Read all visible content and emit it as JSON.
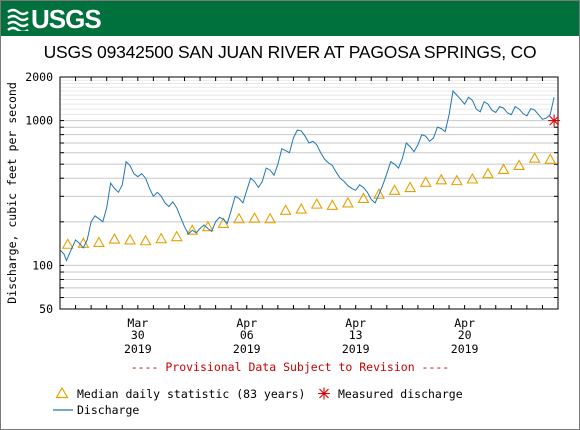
{
  "header": {
    "logo_text": "USGS",
    "logo_icon": "usgs-wave-icon",
    "banner_color": "#00703c"
  },
  "chart_data": {
    "type": "line",
    "title": "USGS 09342500 SAN JUAN RIVER AT PAGOSA SPRINGS, CO",
    "ylabel": "Discharge, cubic feet per second",
    "yscale": "log",
    "ylim": [
      50,
      2000
    ],
    "xlim": [
      "2019-03-25",
      "2019-04-26"
    ],
    "y_ticks": [
      {
        "value": 50,
        "label": "50"
      },
      {
        "value": 100,
        "label": "100"
      },
      {
        "value": 1000,
        "label": "1000"
      },
      {
        "value": 2000,
        "label": "2000"
      }
    ],
    "x_ticks": [
      {
        "date": "2019-03-30",
        "month": "Mar",
        "day": "30",
        "year": "2019"
      },
      {
        "date": "2019-04-06",
        "month": "Apr",
        "day": "06",
        "year": "2019"
      },
      {
        "date": "2019-04-13",
        "month": "Apr",
        "day": "13",
        "year": "2019"
      },
      {
        "date": "2019-04-20",
        "month": "Apr",
        "day": "20",
        "year": "2019"
      }
    ],
    "grid": true,
    "provisional_note": "---- Provisional Data Subject to Revision ----",
    "series": [
      {
        "name": "Discharge",
        "color": "#1f77b4",
        "points": [
          [
            "2019-03-25 00:00",
            128
          ],
          [
            "2019-03-25 06:00",
            120
          ],
          [
            "2019-03-25 10:00",
            108
          ],
          [
            "2019-03-25 16:00",
            125
          ],
          [
            "2019-03-26 00:00",
            150
          ],
          [
            "2019-03-26 06:00",
            142
          ],
          [
            "2019-03-26 12:00",
            132
          ],
          [
            "2019-03-26 18:00",
            150
          ],
          [
            "2019-03-27 00:00",
            200
          ],
          [
            "2019-03-27 06:00",
            220
          ],
          [
            "2019-03-27 12:00",
            210
          ],
          [
            "2019-03-27 18:00",
            200
          ],
          [
            "2019-03-28 00:00",
            250
          ],
          [
            "2019-03-28 06:00",
            370
          ],
          [
            "2019-03-28 12:00",
            340
          ],
          [
            "2019-03-28 18:00",
            320
          ],
          [
            "2019-03-29 00:00",
            360
          ],
          [
            "2019-03-29 06:00",
            520
          ],
          [
            "2019-03-29 12:00",
            490
          ],
          [
            "2019-03-29 18:00",
            430
          ],
          [
            "2019-03-30 00:00",
            410
          ],
          [
            "2019-03-30 06:00",
            430
          ],
          [
            "2019-03-30 12:00",
            400
          ],
          [
            "2019-03-30 18:00",
            340
          ],
          [
            "2019-03-31 00:00",
            300
          ],
          [
            "2019-03-31 06:00",
            320
          ],
          [
            "2019-03-31 12:00",
            300
          ],
          [
            "2019-03-31 18:00",
            270
          ],
          [
            "2019-04-01 00:00",
            255
          ],
          [
            "2019-04-01 06:00",
            275
          ],
          [
            "2019-04-01 12:00",
            250
          ],
          [
            "2019-04-01 18:00",
            215
          ],
          [
            "2019-04-02 00:00",
            185
          ],
          [
            "2019-04-02 06:00",
            165
          ],
          [
            "2019-04-02 12:00",
            175
          ],
          [
            "2019-04-02 18:00",
            168
          ],
          [
            "2019-04-03 00:00",
            180
          ],
          [
            "2019-04-03 06:00",
            190
          ],
          [
            "2019-04-03 12:00",
            180
          ],
          [
            "2019-04-03 18:00",
            172
          ],
          [
            "2019-04-04 00:00",
            200
          ],
          [
            "2019-04-04 06:00",
            215
          ],
          [
            "2019-04-04 12:00",
            208
          ],
          [
            "2019-04-04 18:00",
            195
          ],
          [
            "2019-04-05 00:00",
            240
          ],
          [
            "2019-04-05 06:00",
            300
          ],
          [
            "2019-04-05 12:00",
            290
          ],
          [
            "2019-04-05 18:00",
            270
          ],
          [
            "2019-04-06 00:00",
            330
          ],
          [
            "2019-04-06 06:00",
            400
          ],
          [
            "2019-04-06 12:00",
            380
          ],
          [
            "2019-04-06 18:00",
            345
          ],
          [
            "2019-04-07 00:00",
            380
          ],
          [
            "2019-04-07 06:00",
            470
          ],
          [
            "2019-04-07 12:00",
            455
          ],
          [
            "2019-04-07 18:00",
            420
          ],
          [
            "2019-04-08 00:00",
            500
          ],
          [
            "2019-04-08 06:00",
            640
          ],
          [
            "2019-04-08 12:00",
            620
          ],
          [
            "2019-04-08 18:00",
            600
          ],
          [
            "2019-04-09 00:00",
            760
          ],
          [
            "2019-04-09 06:00",
            860
          ],
          [
            "2019-04-09 12:00",
            850
          ],
          [
            "2019-04-09 18:00",
            780
          ],
          [
            "2019-04-10 00:00",
            700
          ],
          [
            "2019-04-10 06:00",
            720
          ],
          [
            "2019-04-10 12:00",
            680
          ],
          [
            "2019-04-10 18:00",
            600
          ],
          [
            "2019-04-11 00:00",
            540
          ],
          [
            "2019-04-11 06:00",
            510
          ],
          [
            "2019-04-11 12:00",
            490
          ],
          [
            "2019-04-11 18:00",
            440
          ],
          [
            "2019-04-12 00:00",
            400
          ],
          [
            "2019-04-12 06:00",
            380
          ],
          [
            "2019-04-12 12:00",
            355
          ],
          [
            "2019-04-12 18:00",
            340
          ],
          [
            "2019-04-13 00:00",
            330
          ],
          [
            "2019-04-13 06:00",
            360
          ],
          [
            "2019-04-13 12:00",
            345
          ],
          [
            "2019-04-13 18:00",
            320
          ],
          [
            "2019-04-14 00:00",
            285
          ],
          [
            "2019-04-14 06:00",
            270
          ],
          [
            "2019-04-14 12:00",
            310
          ],
          [
            "2019-04-14 18:00",
            360
          ],
          [
            "2019-04-15 00:00",
            430
          ],
          [
            "2019-04-15 06:00",
            520
          ],
          [
            "2019-04-15 12:00",
            500
          ],
          [
            "2019-04-15 18:00",
            470
          ],
          [
            "2019-04-16 00:00",
            550
          ],
          [
            "2019-04-16 06:00",
            700
          ],
          [
            "2019-04-16 12:00",
            660
          ],
          [
            "2019-04-16 18:00",
            610
          ],
          [
            "2019-04-17 00:00",
            680
          ],
          [
            "2019-04-17 06:00",
            800
          ],
          [
            "2019-04-17 12:00",
            780
          ],
          [
            "2019-04-17 18:00",
            720
          ],
          [
            "2019-04-18 00:00",
            760
          ],
          [
            "2019-04-18 06:00",
            900
          ],
          [
            "2019-04-18 12:00",
            880
          ],
          [
            "2019-04-18 18:00",
            840
          ],
          [
            "2019-04-19 00:00",
            1100
          ],
          [
            "2019-04-19 06:00",
            1600
          ],
          [
            "2019-04-19 12:00",
            1500
          ],
          [
            "2019-04-19 18:00",
            1400
          ],
          [
            "2019-04-20 00:00",
            1300
          ],
          [
            "2019-04-20 06:00",
            1450
          ],
          [
            "2019-04-20 12:00",
            1380
          ],
          [
            "2019-04-20 18:00",
            1200
          ],
          [
            "2019-04-21 00:00",
            1150
          ],
          [
            "2019-04-21 06:00",
            1350
          ],
          [
            "2019-04-21 12:00",
            1300
          ],
          [
            "2019-04-21 18:00",
            1180
          ],
          [
            "2019-04-22 00:00",
            1140
          ],
          [
            "2019-04-22 06:00",
            1250
          ],
          [
            "2019-04-22 12:00",
            1220
          ],
          [
            "2019-04-22 18:00",
            1130
          ],
          [
            "2019-04-23 00:00",
            1100
          ],
          [
            "2019-04-23 06:00",
            1250
          ],
          [
            "2019-04-23 12:00",
            1200
          ],
          [
            "2019-04-23 18:00",
            1120
          ],
          [
            "2019-04-24 00:00",
            1080
          ],
          [
            "2019-04-24 06:00",
            1210
          ],
          [
            "2019-04-24 12:00",
            1180
          ],
          [
            "2019-04-24 18:00",
            1100
          ],
          [
            "2019-04-25 00:00",
            1020
          ],
          [
            "2019-04-25 06:00",
            1040
          ],
          [
            "2019-04-25 12:00",
            1100
          ],
          [
            "2019-04-25 18:00",
            1450
          ]
        ]
      },
      {
        "name": "Median daily statistic (83 years)",
        "color": "#e8a000",
        "marker": "triangle",
        "points": [
          [
            "2019-03-25",
            140
          ],
          [
            "2019-03-26",
            142
          ],
          [
            "2019-03-27",
            144
          ],
          [
            "2019-03-28",
            152
          ],
          [
            "2019-03-29",
            150
          ],
          [
            "2019-03-30",
            148
          ],
          [
            "2019-03-31",
            153
          ],
          [
            "2019-04-01",
            158
          ],
          [
            "2019-04-02",
            175
          ],
          [
            "2019-04-03",
            185
          ],
          [
            "2019-04-04",
            195
          ],
          [
            "2019-04-05",
            210
          ],
          [
            "2019-04-06",
            212
          ],
          [
            "2019-04-07",
            210
          ],
          [
            "2019-04-08",
            240
          ],
          [
            "2019-04-09",
            245
          ],
          [
            "2019-04-10",
            265
          ],
          [
            "2019-04-11",
            260
          ],
          [
            "2019-04-12",
            270
          ],
          [
            "2019-04-13",
            290
          ],
          [
            "2019-04-14",
            310
          ],
          [
            "2019-04-15",
            330
          ],
          [
            "2019-04-16",
            345
          ],
          [
            "2019-04-17",
            375
          ],
          [
            "2019-04-18",
            390
          ],
          [
            "2019-04-19",
            385
          ],
          [
            "2019-04-20",
            395
          ],
          [
            "2019-04-21",
            430
          ],
          [
            "2019-04-22",
            460
          ],
          [
            "2019-04-23",
            490
          ],
          [
            "2019-04-24",
            550
          ],
          [
            "2019-04-25",
            540
          ]
        ]
      },
      {
        "name": "Measured discharge",
        "color": "#dd0000",
        "marker": "asterisk",
        "points": [
          [
            "2019-04-25 18:00",
            1000
          ]
        ]
      }
    ]
  },
  "legend": [
    {
      "label": "Median daily statistic (83 years)",
      "icon": "median-triangle-icon"
    },
    {
      "label": "Measured discharge",
      "icon": "measured-asterisk-icon"
    },
    {
      "label": "Discharge",
      "icon": "discharge-line-icon"
    }
  ]
}
